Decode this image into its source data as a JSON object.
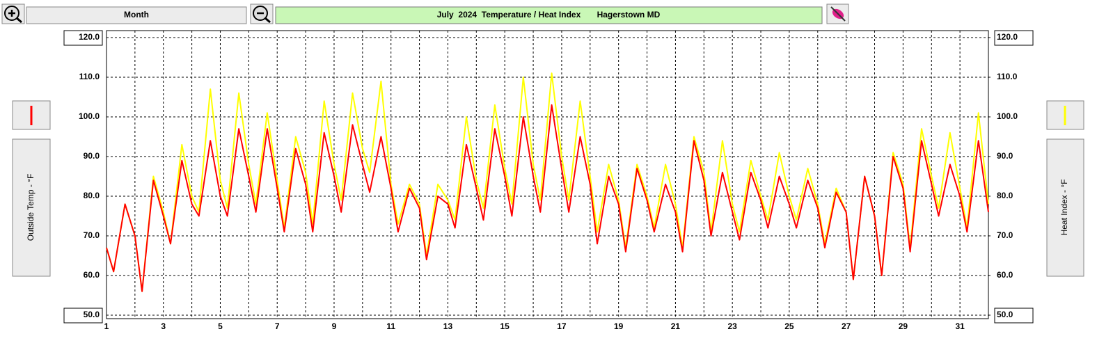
{
  "ui": {
    "period_button": "Month"
  },
  "chart_data": {
    "type": "line",
    "title": "July  2024  Temperature / Heat Index       Hagerstown MD",
    "x": [
      1,
      1.25,
      1.65,
      2,
      2.25,
      2.65,
      3,
      3.25,
      3.65,
      4,
      4.25,
      4.65,
      5,
      5.25,
      5.65,
      6,
      6.25,
      6.65,
      7,
      7.25,
      7.65,
      8,
      8.25,
      8.65,
      9,
      9.25,
      9.65,
      10,
      10.25,
      10.65,
      11,
      11.25,
      11.65,
      12,
      12.25,
      12.65,
      13,
      13.25,
      13.65,
      14,
      14.25,
      14.65,
      15,
      15.25,
      15.65,
      16,
      16.25,
      16.65,
      17,
      17.25,
      17.65,
      18,
      18.25,
      18.65,
      19,
      19.25,
      19.65,
      20,
      20.25,
      20.65,
      21,
      21.25,
      21.65,
      22,
      22.25,
      22.65,
      23,
      23.25,
      23.65,
      24,
      24.25,
      24.65,
      25,
      25.25,
      25.65,
      26,
      26.25,
      26.65,
      27,
      27.25,
      27.65,
      28,
      28.25,
      28.65,
      29,
      29.25,
      29.65,
      30,
      30.25,
      30.65,
      31,
      31.25,
      31.65,
      32
    ],
    "series": [
      {
        "name": "Outside Temp - °F",
        "color": "#ff0000",
        "axis": "y",
        "values": [
          67,
          61,
          78,
          70,
          56,
          84,
          75,
          68,
          89,
          78,
          75,
          94,
          80,
          75,
          97,
          85,
          76,
          97,
          82,
          71,
          92,
          83,
          71,
          96,
          85,
          76,
          98,
          88,
          81,
          95,
          82,
          71,
          82,
          77,
          64,
          80,
          78,
          72,
          93,
          82,
          74,
          97,
          85,
          75,
          100,
          85,
          76,
          103,
          87,
          76,
          95,
          83,
          68,
          85,
          78,
          66,
          87,
          79,
          71,
          83,
          76,
          66,
          94,
          84,
          70,
          86,
          76,
          69,
          86,
          79,
          72,
          85,
          78,
          72,
          84,
          77,
          67,
          81,
          76,
          59,
          85,
          75,
          60,
          90,
          82,
          66,
          94,
          83,
          75,
          88,
          80,
          71,
          94,
          76
        ]
      },
      {
        "name": "Heat Index - °F",
        "color": "#ffff00",
        "axis": "y2",
        "values": [
          67,
          61,
          78,
          70,
          56,
          85,
          76,
          68,
          93,
          80,
          76,
          107,
          84,
          77,
          106,
          88,
          78,
          101,
          84,
          72,
          95,
          86,
          73,
          104,
          88,
          79,
          106,
          92,
          86,
          109,
          83,
          73,
          83,
          78,
          65,
          83,
          79,
          74,
          100,
          84,
          77,
          103,
          87,
          78,
          110,
          88,
          79,
          111,
          90,
          79,
          104,
          85,
          71,
          88,
          79,
          67,
          88,
          80,
          72,
          88,
          78,
          67,
          95,
          86,
          71,
          94,
          78,
          71,
          89,
          80,
          74,
          91,
          80,
          74,
          87,
          78,
          68,
          82,
          76,
          59,
          85,
          75,
          60,
          91,
          83,
          67,
          97,
          85,
          77,
          96,
          82,
          72,
          101,
          78
        ]
      }
    ],
    "xlim": [
      1,
      32
    ],
    "xticks": [
      1,
      3,
      5,
      7,
      9,
      11,
      13,
      15,
      17,
      19,
      21,
      23,
      25,
      27,
      29,
      31
    ],
    "xminor": [
      2,
      4,
      6,
      8,
      10,
      12,
      14,
      16,
      18,
      20,
      22,
      24,
      26,
      28,
      30
    ],
    "ylim": [
      50,
      120
    ],
    "yticks": [
      {
        "value": 120,
        "label": "120.0"
      },
      {
        "value": 110,
        "label": "110.0"
      },
      {
        "value": 100,
        "label": "100.0"
      },
      {
        "value": 90,
        "label": "90.0"
      },
      {
        "value": 80,
        "label": "80.0"
      },
      {
        "value": 70,
        "label": "70.0"
      },
      {
        "value": 60,
        "label": "60.0"
      },
      {
        "value": 50,
        "label": "50.0"
      }
    ],
    "y2lim": [
      50,
      120
    ],
    "y2ticks": [
      {
        "value": 120,
        "label": "120.0"
      },
      {
        "value": 110,
        "label": "110.0"
      },
      {
        "value": 100,
        "label": "100.0"
      },
      {
        "value": 90,
        "label": "90.0"
      },
      {
        "value": 80,
        "label": "80.0"
      },
      {
        "value": 70,
        "label": "70.0"
      },
      {
        "value": 60,
        "label": "60.0"
      },
      {
        "value": 50,
        "label": "50.0"
      }
    ],
    "grid": true
  }
}
